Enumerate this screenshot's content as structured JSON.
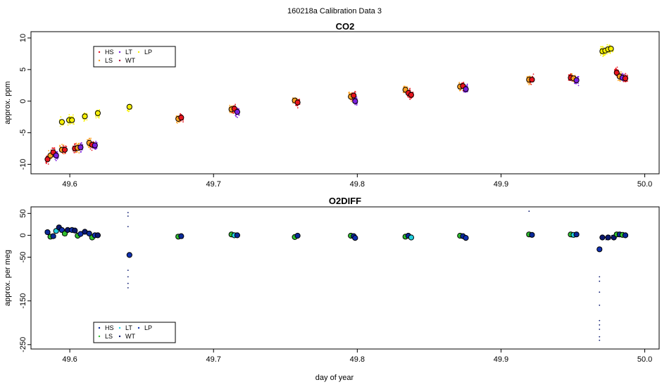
{
  "page_title": "160218a   Calibration Data 3",
  "x_axis_label": "day of year",
  "colors": {
    "HS": "#e8141e",
    "LS": "#ffa020",
    "LT": "#7b1fe0",
    "WT": "#b0103a",
    "LP": "#f7f000",
    "O2_HS": "#0a2a9a",
    "O2_LS": "#1a8a1a",
    "O2_LT": "#20d0e0",
    "O2_WT": "#0a1870",
    "O2_LP": "#1030b0",
    "O2_green": "#30c030"
  },
  "chart_data": [
    {
      "type": "scatter",
      "title": "CO2",
      "xlabel": "",
      "ylabel": "approx. ppm",
      "xlim": [
        49.573,
        50.01
      ],
      "ylim": [
        -11.5,
        11
      ],
      "xticks": [
        49.6,
        49.7,
        49.8,
        49.9,
        50.0
      ],
      "xtick_labels": [
        "49.6",
        "49.7",
        "49.8",
        "49.9",
        "50.0"
      ],
      "yticks": [
        -10,
        -5,
        0,
        5,
        10
      ],
      "ytick_labels": [
        "-10",
        "-5",
        "0",
        "5",
        "10"
      ],
      "legend": {
        "position": "top-left",
        "entries": [
          "HS",
          "LT",
          "LP",
          "LS",
          "WT"
        ]
      },
      "clusters": [
        {
          "x": 49.5845,
          "y": -9.2,
          "color": "HS"
        },
        {
          "x": 49.5865,
          "y": -8.6,
          "color": "LS"
        },
        {
          "x": 49.5885,
          "y": -8.1,
          "color": "HS"
        },
        {
          "x": 49.5905,
          "y": -8.6,
          "color": "LT"
        },
        {
          "x": 49.5945,
          "y": -3.3,
          "color": "LP"
        },
        {
          "x": 49.5945,
          "y": -7.7,
          "color": "LS"
        },
        {
          "x": 49.5965,
          "y": -7.7,
          "color": "HS"
        },
        {
          "x": 49.5995,
          "y": -3.0,
          "color": "LP"
        },
        {
          "x": 49.6015,
          "y": -3.0,
          "color": "LP"
        },
        {
          "x": 49.6035,
          "y": -7.5,
          "color": "HS"
        },
        {
          "x": 49.6055,
          "y": -7.4,
          "color": "LS"
        },
        {
          "x": 49.6075,
          "y": -7.3,
          "color": "LT"
        },
        {
          "x": 49.6105,
          "y": -2.4,
          "color": "LP"
        },
        {
          "x": 49.6135,
          "y": -6.6,
          "color": "LS"
        },
        {
          "x": 49.6155,
          "y": -6.9,
          "color": "HS"
        },
        {
          "x": 49.6175,
          "y": -7.0,
          "color": "LT"
        },
        {
          "x": 49.6195,
          "y": -1.9,
          "color": "LP"
        },
        {
          "x": 49.6415,
          "y": -0.9,
          "color": "LP"
        },
        {
          "x": 49.6755,
          "y": -2.8,
          "color": "LS"
        },
        {
          "x": 49.6775,
          "y": -2.6,
          "color": "HS"
        },
        {
          "x": 49.7125,
          "y": -1.3,
          "color": "LS"
        },
        {
          "x": 49.7145,
          "y": -1.2,
          "color": "HS"
        },
        {
          "x": 49.7165,
          "y": -1.7,
          "color": "LT"
        },
        {
          "x": 49.7565,
          "y": 0.1,
          "color": "LS"
        },
        {
          "x": 49.7585,
          "y": -0.2,
          "color": "HS"
        },
        {
          "x": 49.7955,
          "y": 0.7,
          "color": "LS"
        },
        {
          "x": 49.7975,
          "y": 0.9,
          "color": "HS"
        },
        {
          "x": 49.7985,
          "y": 0.0,
          "color": "LT"
        },
        {
          "x": 49.8335,
          "y": 1.8,
          "color": "LS"
        },
        {
          "x": 49.8355,
          "y": 1.3,
          "color": "HS"
        },
        {
          "x": 49.8375,
          "y": 1.0,
          "color": "HS"
        },
        {
          "x": 49.8715,
          "y": 2.3,
          "color": "LS"
        },
        {
          "x": 49.8735,
          "y": 2.4,
          "color": "HS"
        },
        {
          "x": 49.8755,
          "y": 1.9,
          "color": "LT"
        },
        {
          "x": 49.9195,
          "y": 3.4,
          "color": "LS"
        },
        {
          "x": 49.9215,
          "y": 3.4,
          "color": "HS"
        },
        {
          "x": 49.9485,
          "y": 3.7,
          "color": "HS"
        },
        {
          "x": 49.9505,
          "y": 3.6,
          "color": "LS"
        },
        {
          "x": 49.9525,
          "y": 3.3,
          "color": "LT"
        },
        {
          "x": 49.9705,
          "y": 7.9,
          "color": "LP"
        },
        {
          "x": 49.9725,
          "y": 8.0,
          "color": "LP"
        },
        {
          "x": 49.9745,
          "y": 8.2,
          "color": "LP"
        },
        {
          "x": 49.9765,
          "y": 8.3,
          "color": "LP"
        },
        {
          "x": 49.9805,
          "y": 4.5,
          "color": "HS"
        },
        {
          "x": 49.9825,
          "y": 3.9,
          "color": "LS"
        },
        {
          "x": 49.9845,
          "y": 3.7,
          "color": "LT"
        },
        {
          "x": 49.9865,
          "y": 3.6,
          "color": "HS"
        }
      ]
    },
    {
      "type": "scatter",
      "title": "O2DIFF",
      "xlabel": "day of year",
      "ylabel": "approx. per meg",
      "xlim": [
        49.573,
        50.01
      ],
      "ylim": [
        -260,
        65
      ],
      "xticks": [
        49.6,
        49.7,
        49.8,
        49.9,
        50.0
      ],
      "xtick_labels": [
        "49.6",
        "49.7",
        "49.8",
        "49.9",
        "50.0"
      ],
      "yticks": [
        50,
        0,
        -50,
        -150,
        -250
      ],
      "ytick_labels": [
        "50",
        "0",
        "-50",
        "-150",
        "-250"
      ],
      "legend": {
        "position": "bottom-left",
        "entries": [
          "HS",
          "LT",
          "LP",
          "LS",
          "WT"
        ]
      },
      "clusters": [
        {
          "x": 49.5845,
          "y": 7,
          "color": "O2_HS"
        },
        {
          "x": 49.5865,
          "y": -3,
          "color": "O2_green"
        },
        {
          "x": 49.5885,
          "y": -2,
          "color": "O2_HS"
        },
        {
          "x": 49.5905,
          "y": 10,
          "color": "O2_LT"
        },
        {
          "x": 49.5925,
          "y": 18,
          "color": "O2_WT"
        },
        {
          "x": 49.5945,
          "y": 12,
          "color": "O2_LP"
        },
        {
          "x": 49.5965,
          "y": 4,
          "color": "O2_green"
        },
        {
          "x": 49.5985,
          "y": 12,
          "color": "O2_WT"
        },
        {
          "x": 49.6015,
          "y": 12,
          "color": "O2_LP"
        },
        {
          "x": 49.6035,
          "y": 11,
          "color": "O2_WT"
        },
        {
          "x": 49.6055,
          "y": -1,
          "color": "O2_green"
        },
        {
          "x": 49.6075,
          "y": 3,
          "color": "O2_LP"
        },
        {
          "x": 49.6105,
          "y": 8,
          "color": "O2_WT"
        },
        {
          "x": 49.6135,
          "y": 4,
          "color": "O2_HS"
        },
        {
          "x": 49.6155,
          "y": -5,
          "color": "O2_green"
        },
        {
          "x": 49.6175,
          "y": 0,
          "color": "O2_LP"
        },
        {
          "x": 49.6195,
          "y": 0,
          "color": "O2_WT"
        },
        {
          "x": 49.6415,
          "y": -45,
          "color": "O2_LP"
        },
        {
          "x": 49.6755,
          "y": -3,
          "color": "O2_green"
        },
        {
          "x": 49.6775,
          "y": -2,
          "color": "O2_HS"
        },
        {
          "x": 49.7125,
          "y": 2,
          "color": "O2_green"
        },
        {
          "x": 49.7145,
          "y": 0,
          "color": "O2_LT"
        },
        {
          "x": 49.7165,
          "y": 0,
          "color": "O2_HS"
        },
        {
          "x": 49.7565,
          "y": -4,
          "color": "O2_green"
        },
        {
          "x": 49.7585,
          "y": -1,
          "color": "O2_HS"
        },
        {
          "x": 49.7955,
          "y": -1,
          "color": "O2_green"
        },
        {
          "x": 49.7975,
          "y": -2,
          "color": "O2_HS"
        },
        {
          "x": 49.7985,
          "y": -6,
          "color": "O2_LP"
        },
        {
          "x": 49.8335,
          "y": -3,
          "color": "O2_green"
        },
        {
          "x": 49.8355,
          "y": -1,
          "color": "O2_HS"
        },
        {
          "x": 49.8375,
          "y": -5,
          "color": "O2_LT"
        },
        {
          "x": 49.8715,
          "y": -1,
          "color": "O2_green"
        },
        {
          "x": 49.8735,
          "y": -2,
          "color": "O2_HS"
        },
        {
          "x": 49.8755,
          "y": -6,
          "color": "O2_LP"
        },
        {
          "x": 49.9195,
          "y": 2,
          "color": "O2_green"
        },
        {
          "x": 49.9215,
          "y": 1,
          "color": "O2_HS"
        },
        {
          "x": 49.9485,
          "y": 2,
          "color": "O2_green"
        },
        {
          "x": 49.9505,
          "y": 1,
          "color": "O2_LT"
        },
        {
          "x": 49.9525,
          "y": 2,
          "color": "O2_HS"
        },
        {
          "x": 49.9685,
          "y": -32,
          "color": "O2_LP"
        },
        {
          "x": 49.9705,
          "y": -5,
          "color": "O2_WT"
        },
        {
          "x": 49.9745,
          "y": -5,
          "color": "O2_WT"
        },
        {
          "x": 49.9785,
          "y": -5,
          "color": "O2_WT"
        },
        {
          "x": 49.9805,
          "y": 2,
          "color": "O2_green"
        },
        {
          "x": 49.9825,
          "y": 2,
          "color": "O2_HS"
        },
        {
          "x": 49.9845,
          "y": 1,
          "color": "O2_green"
        },
        {
          "x": 49.9865,
          "y": 0,
          "color": "O2_HS"
        }
      ],
      "outliers": [
        {
          "x": 49.6405,
          "y": 52
        },
        {
          "x": 49.6405,
          "y": 44
        },
        {
          "x": 49.6405,
          "y": 20
        },
        {
          "x": 49.6405,
          "y": -80
        },
        {
          "x": 49.6405,
          "y": -95
        },
        {
          "x": 49.6405,
          "y": -110
        },
        {
          "x": 49.6405,
          "y": -120
        },
        {
          "x": 49.9685,
          "y": -95
        },
        {
          "x": 49.9685,
          "y": -105
        },
        {
          "x": 49.9685,
          "y": -130
        },
        {
          "x": 49.9685,
          "y": -160
        },
        {
          "x": 49.9685,
          "y": -195
        },
        {
          "x": 49.9685,
          "y": -205
        },
        {
          "x": 49.9685,
          "y": -215
        },
        {
          "x": 49.9685,
          "y": -232
        },
        {
          "x": 49.9685,
          "y": -240
        },
        {
          "x": 49.9195,
          "y": 55
        }
      ]
    }
  ]
}
